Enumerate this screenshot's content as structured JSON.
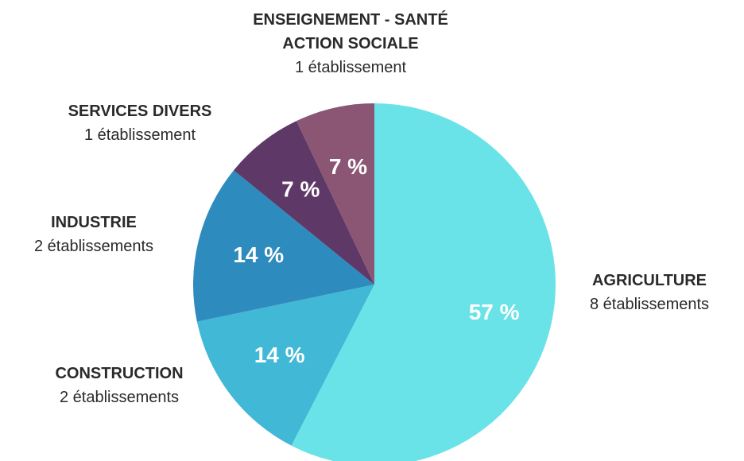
{
  "chart_data": {
    "type": "pie",
    "categories": [
      "AGRICULTURE",
      "CONSTRUCTION",
      "INDUSTRIE",
      "SERVICES DIVERS",
      "ENSEIGNEMENT - SANTÉ\nACTION SOCIALE"
    ],
    "descriptions": [
      "8 établissements",
      "2 établissements",
      "2 établissements",
      "1 établissement",
      "1 établissement"
    ],
    "values": [
      57,
      14,
      14,
      7,
      7
    ],
    "value_labels": [
      "57 %",
      "14 %",
      "14 %",
      "7 %",
      "7 %"
    ],
    "colors": [
      "#6ae3e8",
      "#41b8d5",
      "#2e8bbd",
      "#5e3866",
      "#8a5674"
    ]
  }
}
